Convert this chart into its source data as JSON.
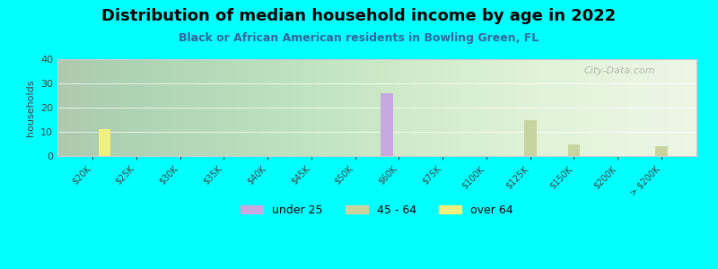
{
  "title": "Distribution of median household income by age in 2022",
  "subtitle": "Black or African American residents in Bowling Green, FL",
  "ylabel": "households",
  "background_color": "#00FFFF",
  "categories": [
    "$20K",
    "$25K",
    "$30K",
    "$35K",
    "$40K",
    "$45K",
    "$50K",
    "$60K",
    "$75K",
    "$100K",
    "$125K",
    "$150K",
    "$200K",
    "> $200K"
  ],
  "under25": [
    0,
    0,
    0,
    0,
    0,
    0,
    0,
    26,
    0,
    0,
    0,
    0,
    0,
    0
  ],
  "age45_64": [
    0,
    0,
    0,
    0,
    0,
    0,
    0,
    0,
    0,
    0,
    15,
    5,
    0,
    4
  ],
  "over64": [
    11,
    0,
    0,
    0,
    0,
    0,
    0,
    0,
    0,
    0,
    0,
    0,
    0,
    0
  ],
  "under25_color": "#C8A8E0",
  "age45_64_color": "#C8D4A0",
  "over64_color": "#F0F080",
  "ylim": [
    0,
    40
  ],
  "watermark": "City-Data.com",
  "legend_labels": [
    "under 25",
    "45 - 64",
    "over 64"
  ]
}
